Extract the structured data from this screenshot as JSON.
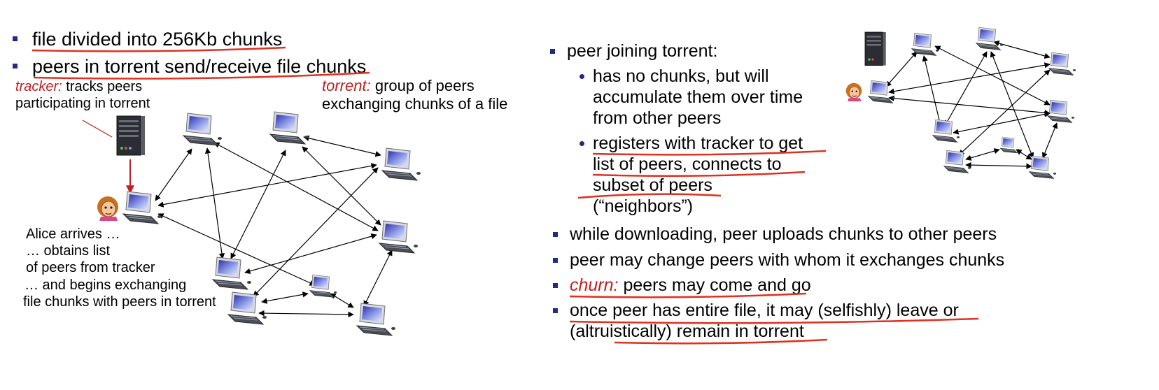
{
  "left": {
    "bullets": [
      "file divided into 256Kb chunks",
      "peers in torrent send/receive file chunks"
    ],
    "tracker_term": "tracker:",
    "tracker_desc_1": "tracks peers",
    "tracker_desc_2": "participating in torrent",
    "torrent_term": "torrent:",
    "torrent_desc_1": "group of peers",
    "torrent_desc_2": "exchanging  chunks of a file",
    "alice_lines": [
      "Alice arrives  …",
      "… obtains list",
      "of peers from tracker",
      "… and begins exchanging",
      "file chunks with peers in torrent"
    ]
  },
  "right": {
    "peer_joining": "peer joining torrent:",
    "sub1_lines": [
      "has no chunks, but will",
      "accumulate them over time",
      "from other peers"
    ],
    "sub2_lines": [
      "registers with tracker to get",
      "list of peers, connects to",
      "subset of peers",
      "(“neighbors”)"
    ],
    "b2": "while downloading, peer uploads chunks to other peers",
    "b3": "peer may change peers with whom it exchanges chunks",
    "churn_term": "churn:",
    "churn_desc": "peers may come and go",
    "b5_line1": "once peer has entire file, it may (selfishly) leave or",
    "b5_line2": "(altruistically) remain in torrent"
  },
  "colors": {
    "bullet": "#1f2a8c",
    "accent_red": "#c0201f",
    "underline_red": "#e0301e"
  },
  "icons": {
    "peer": "desktop-computer-icon",
    "tracker": "server-icon",
    "alice": "person-icon"
  }
}
